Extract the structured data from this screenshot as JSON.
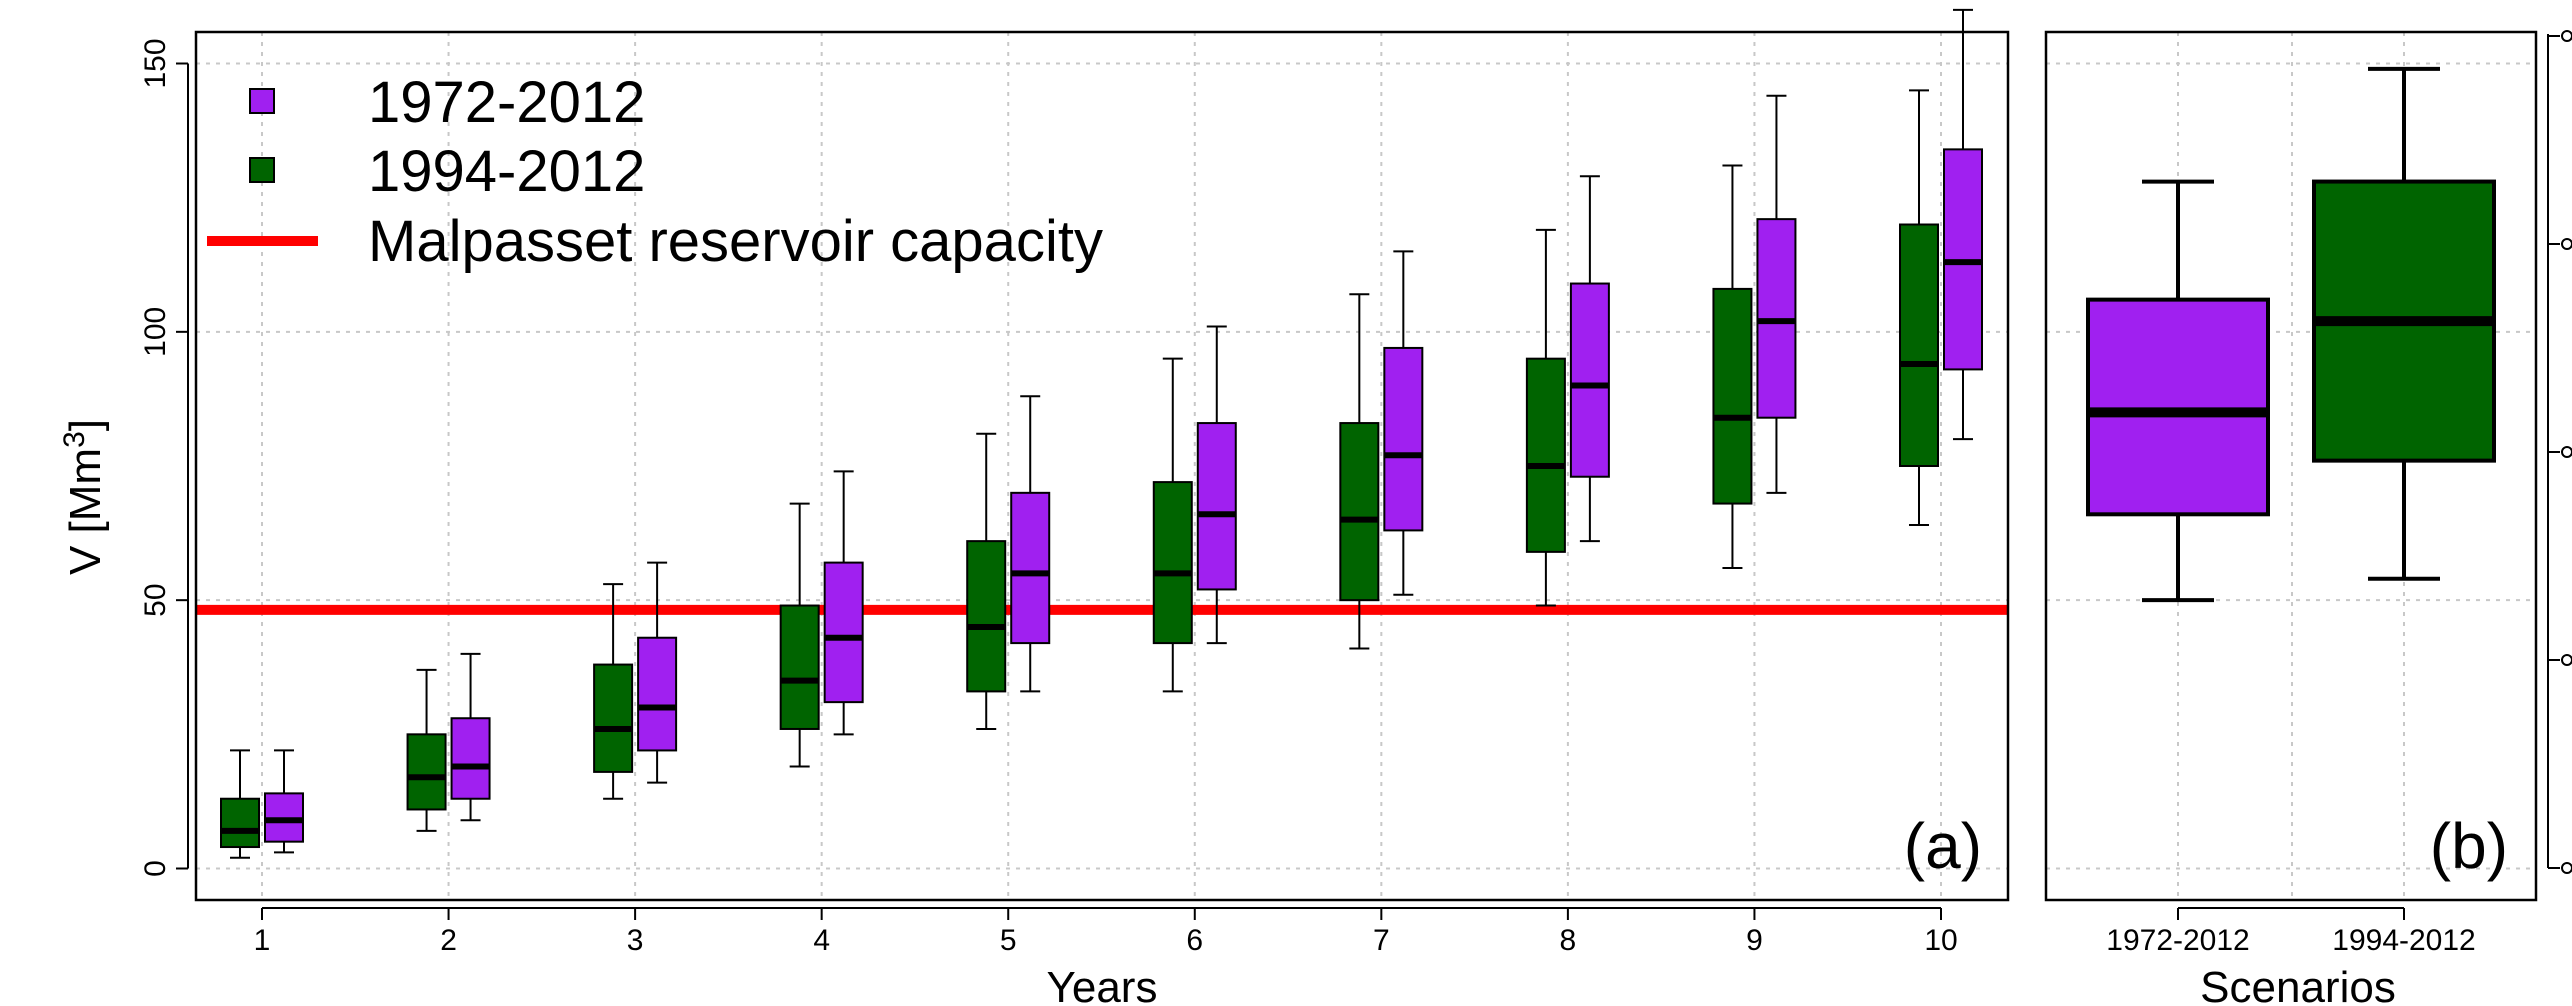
{
  "chart_data": [
    {
      "panel": "(a)",
      "type": "box",
      "xlabel": "Years",
      "ylabel": "V [Mm³]",
      "ylabel_parts": {
        "main": "V [Mm",
        "sup": "3",
        "close": "]"
      },
      "ylim": [
        -6,
        156
      ],
      "yticks": [
        0,
        50,
        100,
        150
      ],
      "categories": [
        "1",
        "2",
        "3",
        "4",
        "5",
        "6",
        "7",
        "8",
        "9",
        "10"
      ],
      "grid": true,
      "legend_position": "top-left",
      "colors": {
        "1972-2012": "#a020f0",
        "1994-2012": "#006400",
        "capacity": "#ff0000"
      },
      "legend": [
        {
          "label": "1972-2012",
          "symbol": "square",
          "color": "#a020f0"
        },
        {
          "label": "1994-2012",
          "symbol": "square",
          "color": "#006400"
        },
        {
          "label": "Malpasset reservoir capacity",
          "symbol": "line",
          "color": "#ff0000"
        }
      ],
      "reference_line": {
        "name": "Malpasset reservoir capacity",
        "y": 48.2,
        "color": "#ff0000"
      },
      "series": [
        {
          "name": "1994-2012",
          "color": "#006400",
          "boxes": [
            {
              "min": 2,
              "q1": 4,
              "median": 7,
              "q3": 13,
              "max": 22
            },
            {
              "min": 7,
              "q1": 11,
              "median": 17,
              "q3": 25,
              "max": 37
            },
            {
              "min": 13,
              "q1": 18,
              "median": 26,
              "q3": 38,
              "max": 53
            },
            {
              "min": 19,
              "q1": 26,
              "median": 35,
              "q3": 49,
              "max": 68
            },
            {
              "min": 26,
              "q1": 33,
              "median": 45,
              "q3": 61,
              "max": 81
            },
            {
              "min": 33,
              "q1": 42,
              "median": 55,
              "q3": 72,
              "max": 95
            },
            {
              "min": 41,
              "q1": 50,
              "median": 65,
              "q3": 83,
              "max": 107
            },
            {
              "min": 49,
              "q1": 59,
              "median": 75,
              "q3": 95,
              "max": 119
            },
            {
              "min": 56,
              "q1": 68,
              "median": 84,
              "q3": 108,
              "max": 131
            },
            {
              "min": 64,
              "q1": 75,
              "median": 94,
              "q3": 120,
              "max": 145
            }
          ]
        },
        {
          "name": "1972-2012",
          "color": "#a020f0",
          "boxes": [
            {
              "min": 3,
              "q1": 5,
              "median": 9,
              "q3": 14,
              "max": 22
            },
            {
              "min": 9,
              "q1": 13,
              "median": 19,
              "q3": 28,
              "max": 40
            },
            {
              "min": 16,
              "q1": 22,
              "median": 30,
              "q3": 43,
              "max": 57
            },
            {
              "min": 25,
              "q1": 31,
              "median": 43,
              "q3": 57,
              "max": 74
            },
            {
              "min": 33,
              "q1": 42,
              "median": 55,
              "q3": 70,
              "max": 88
            },
            {
              "min": 42,
              "q1": 52,
              "median": 66,
              "q3": 83,
              "max": 101
            },
            {
              "min": 51,
              "q1": 63,
              "median": 77,
              "q3": 97,
              "max": 115
            },
            {
              "min": 61,
              "q1": 73,
              "median": 90,
              "q3": 109,
              "max": 129
            },
            {
              "min": 70,
              "q1": 84,
              "median": 102,
              "q3": 121,
              "max": 144
            },
            {
              "min": 80,
              "q1": 93,
              "median": 113,
              "q3": 134,
              "max": 160
            }
          ]
        }
      ]
    },
    {
      "panel": "(b)",
      "type": "box",
      "xlabel": "Scenarios",
      "ylim": [
        -6,
        156
      ],
      "categories": [
        "1972-2012",
        "1994-2012"
      ],
      "grid": true,
      "colors": {
        "1972-2012": "#a020f0",
        "1994-2012": "#006400"
      },
      "boxes": [
        {
          "category": "1972-2012",
          "color": "#a020f0",
          "min": 50,
          "q1": 66,
          "median": 85,
          "q3": 106,
          "max": 128
        },
        {
          "category": "1994-2012",
          "color": "#006400",
          "min": 54,
          "q1": 76,
          "median": 102,
          "q3": 128,
          "max": 149
        }
      ]
    }
  ]
}
